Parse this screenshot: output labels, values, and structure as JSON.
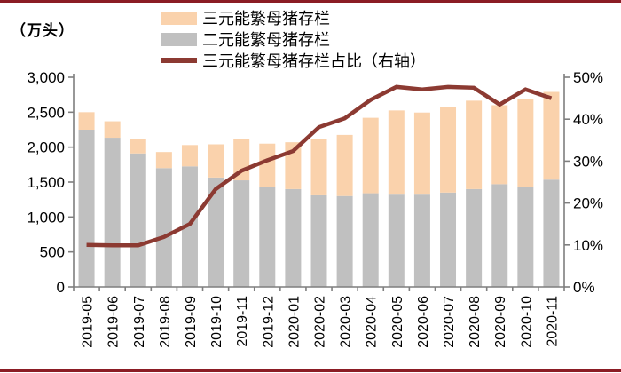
{
  "chart_data": {
    "type": "bar",
    "subtype": "stacked-column-with-line-on-secondary-axis",
    "title": "",
    "categories": [
      "2019-05",
      "2019-06",
      "2019-07",
      "2019-08",
      "2019-09",
      "2019-10",
      "2019-11",
      "2019-12",
      "2020-01",
      "2020-02",
      "2020-03",
      "2020-04",
      "2020-05",
      "2020-06",
      "2020-07",
      "2020-08",
      "2020-09",
      "2020-10",
      "2020-11"
    ],
    "series": [
      {
        "name": "三元能繁母猪存栏",
        "chart_type": "stacked-bar",
        "stack_order": "top",
        "axis": "left",
        "color": "#FAD2AC",
        "values": [
          250,
          235,
          210,
          230,
          305,
          475,
          585,
          620,
          670,
          805,
          875,
          1080,
          1205,
          1175,
          1230,
          1265,
          1130,
          1270,
          1255
        ]
      },
      {
        "name": "二元能繁母猪存栏",
        "chart_type": "stacked-bar",
        "stack_order": "bottom",
        "axis": "left",
        "color": "#C0C0C0",
        "values": [
          2250,
          2135,
          1910,
          1700,
          1725,
          1565,
          1525,
          1430,
          1400,
          1310,
          1300,
          1340,
          1320,
          1320,
          1350,
          1400,
          1470,
          1425,
          1535
        ]
      },
      {
        "name": "三元能繁母猪存栏占比（右轴）",
        "chart_type": "line",
        "axis": "right",
        "color": "#8C3A32",
        "values_percent": [
          10.0,
          9.9,
          9.9,
          11.9,
          15.0,
          23.3,
          27.7,
          30.2,
          32.4,
          38.1,
          40.2,
          44.6,
          47.7,
          47.1,
          47.7,
          47.5,
          43.5,
          47.1,
          45.0
        ]
      }
    ],
    "left_axis": {
      "unit_label": "（万头）",
      "min": 0,
      "max": 3000,
      "step": 500,
      "tick_labels": [
        "0",
        "500",
        "1,000",
        "1,500",
        "2,000",
        "2,500",
        "3,000"
      ]
    },
    "right_axis": {
      "min": 0,
      "max": 50,
      "step": 10,
      "tick_labels": [
        "0%",
        "10%",
        "20%",
        "30%",
        "40%",
        "50%"
      ]
    },
    "legend_position": "top-center",
    "grid": false
  },
  "colors": {
    "ternary_bar": "#FAD2AC",
    "binary_bar": "#C0C0C0",
    "ratio_line": "#8C3A32",
    "frame_border": "#8B1C24",
    "axis_line": "#7F7F7F",
    "text": "#000000"
  }
}
